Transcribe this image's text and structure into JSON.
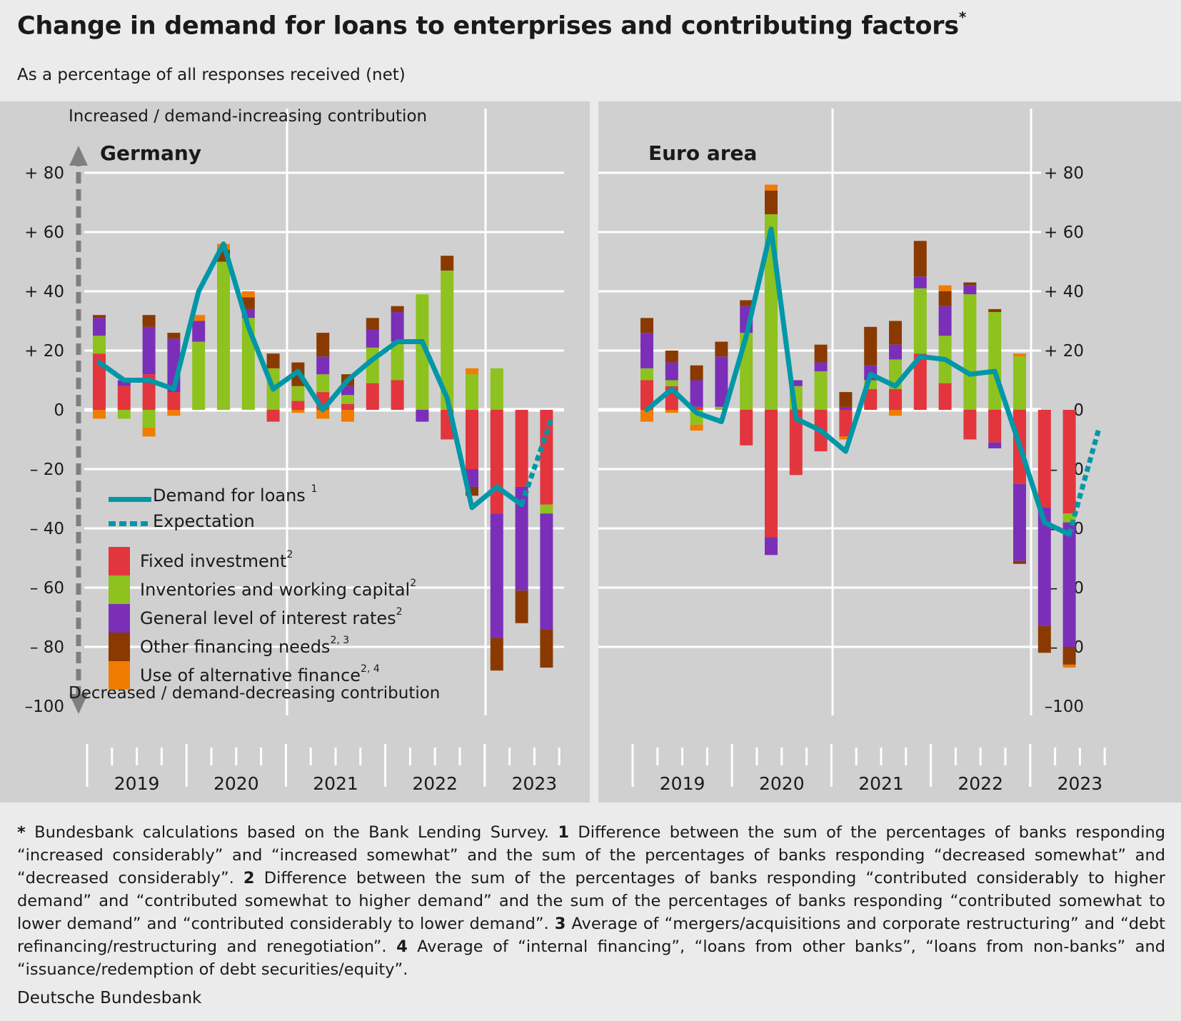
{
  "title": "Change in demand for loans to enterprises and contributing factors",
  "title_marker": "*",
  "subtitle": "As a percentage of all responses received (net)",
  "axis_top_label": "Increased / demand-increasing contribution",
  "axis_bottom_label": "Decreased / demand-decreasing contribution",
  "y_ticks": [
    {
      "value": 80,
      "label": "+  80"
    },
    {
      "value": 60,
      "label": "+  60"
    },
    {
      "value": 40,
      "label": "+  40"
    },
    {
      "value": 20,
      "label": "+  20"
    },
    {
      "value": 0,
      "label": "0"
    },
    {
      "value": -20,
      "label": "–  20"
    },
    {
      "value": -40,
      "label": "–  40"
    },
    {
      "value": -60,
      "label": "–  60"
    },
    {
      "value": -80,
      "label": "–  80"
    },
    {
      "value": -100,
      "label": "–100"
    }
  ],
  "legend": {
    "demand": {
      "label": "Demand for loans",
      "note": "1"
    },
    "expectation": {
      "label": "Expectation"
    },
    "factors": [
      {
        "key": "fixed",
        "label": "Fixed investment",
        "note": "2",
        "color": "#e3353d"
      },
      {
        "key": "inventories",
        "label": "Inventories and working capital",
        "note": "2",
        "color": "#8dc21f"
      },
      {
        "key": "interest",
        "label": "General level of interest rates",
        "note": "2",
        "color": "#7b2fb8"
      },
      {
        "key": "other",
        "label": "Other financing needs",
        "note": "2, 3",
        "color": "#8a3a00"
      },
      {
        "key": "alternative",
        "label": "Use of alternative finance",
        "note": "2, 4",
        "color": "#f07c00"
      }
    ]
  },
  "colors": {
    "line": "#0097a7",
    "panel_bg": "#d0d0d0",
    "page_bg": "#ebebeb",
    "grid": "#ffffff",
    "arrow": "#7f7f7f"
  },
  "footnote": {
    "m0": "*",
    "t0": " Bundesbank calculations based on the Bank Lending Survey. ",
    "m1": "1",
    "t1": " Difference between the sum of the percentages of banks responding “increased considerably” and “increased somewhat” and the sum of the percentages of banks responding “decreased somewhat” and “decreased considerably”. ",
    "m2": "2",
    "t2": " Difference between the sum of the percentages of banks responding “contributed considerably to higher demand” and “contributed somewhat to higher demand” and the sum of the percentages of banks responding “contributed somewhat to lower demand” and “contributed considerably to lower demand”. ",
    "m3": "3",
    "t3": " Average of “mergers/acquisitions and corporate restructuring” and “debt refinancing/restructuring and renegotiation”. ",
    "m4": "4",
    "t4": " Average of “internal financing”, “loans from other banks”, “loans from non-banks” and “issuance/redemption of debt securities/equity”."
  },
  "source": "Deutsche Bundesbank",
  "chart_data": [
    {
      "type": "bar",
      "panel": "Germany",
      "stacked": true,
      "ylim": [
        -100,
        90
      ],
      "year_labels": [
        "2019",
        "2020",
        "2021",
        "2022",
        "2023"
      ],
      "quarters": [
        "2019 Q1",
        "2019 Q2",
        "2019 Q3",
        "2019 Q4",
        "2020 Q1",
        "2020 Q2",
        "2020 Q3",
        "2020 Q4",
        "2021 Q1",
        "2021 Q2",
        "2021 Q3",
        "2021 Q4",
        "2022 Q1",
        "2022 Q2",
        "2022 Q3",
        "2022 Q4",
        "2023 Q1",
        "2023 Q2",
        "2023 Q3"
      ],
      "series": [
        {
          "name": "Fixed investment",
          "key": "fixed",
          "values": [
            19,
            8,
            12,
            6,
            0,
            0,
            0,
            -4,
            3,
            6,
            2,
            9,
            10,
            0,
            -10,
            -20,
            -35,
            -26,
            -32
          ]
        },
        {
          "name": "Inventories and working capital",
          "key": "inventories",
          "values": [
            6,
            -3,
            -6,
            0,
            23,
            50,
            31,
            14,
            5,
            6,
            3,
            12,
            13,
            39,
            47,
            12,
            14,
            0,
            -3
          ]
        },
        {
          "name": "General level of interest rates",
          "key": "interest",
          "values": [
            6,
            2,
            16,
            18,
            7,
            0,
            3,
            0,
            0,
            6,
            3,
            6,
            10,
            -4,
            0,
            -6,
            -42,
            -35,
            -39
          ]
        },
        {
          "name": "Other financing needs",
          "key": "other",
          "values": [
            1,
            0,
            4,
            2,
            0,
            4,
            4,
            5,
            8,
            8,
            4,
            4,
            2,
            0,
            5,
            -3,
            -11,
            -11,
            -13
          ]
        },
        {
          "name": "Use of alternative finance",
          "key": "alternative",
          "values": [
            -3,
            0,
            -3,
            -2,
            2,
            2,
            2,
            0,
            -1,
            -3,
            -4,
            0,
            0,
            0,
            0,
            2,
            0,
            0,
            0
          ]
        }
      ],
      "demand_for_loans": [
        16,
        10,
        10,
        7,
        40,
        56,
        28,
        7,
        13,
        0,
        10,
        17,
        23,
        23,
        4,
        -33,
        -26,
        -32
      ],
      "expectation": [
        -32,
        -3
      ]
    },
    {
      "type": "bar",
      "panel": "Euro area",
      "stacked": true,
      "ylim": [
        -100,
        90
      ],
      "year_labels": [
        "2019",
        "2020",
        "2021",
        "2022",
        "2023"
      ],
      "quarters": [
        "2019 Q1",
        "2019 Q2",
        "2019 Q3",
        "2019 Q4",
        "2020 Q1",
        "2020 Q2",
        "2020 Q3",
        "2020 Q4",
        "2021 Q1",
        "2021 Q2",
        "2021 Q3",
        "2021 Q4",
        "2022 Q1",
        "2022 Q2",
        "2022 Q3",
        "2022 Q4",
        "2023 Q1",
        "2023 Q2",
        "2023 Q3"
      ],
      "series": [
        {
          "name": "Fixed investment",
          "key": "fixed",
          "values": [
            10,
            8,
            1,
            0,
            -12,
            -43,
            -22,
            -14,
            -9,
            7,
            7,
            19,
            9,
            -10,
            -11,
            -25,
            -33,
            -35,
            0
          ]
        },
        {
          "name": "Inventories and working capital",
          "key": "inventories",
          "values": [
            4,
            2,
            -5,
            1,
            26,
            66,
            8,
            13,
            0,
            3,
            10,
            22,
            16,
            39,
            33,
            18,
            0,
            -3,
            0
          ]
        },
        {
          "name": "General level of interest rates",
          "key": "interest",
          "values": [
            12,
            6,
            9,
            17,
            9,
            -6,
            2,
            3,
            1,
            5,
            5,
            4,
            10,
            3,
            -2,
            -26,
            -40,
            -42,
            0
          ]
        },
        {
          "name": "Other financing needs",
          "key": "other",
          "values": [
            5,
            4,
            5,
            5,
            2,
            8,
            0,
            6,
            5,
            13,
            8,
            12,
            5,
            1,
            1,
            -1,
            -9,
            -6,
            0
          ]
        },
        {
          "name": "Use of alternative finance",
          "key": "alternative",
          "values": [
            -4,
            -1,
            -2,
            0,
            0,
            2,
            0,
            0,
            -1,
            0,
            -2,
            0,
            2,
            0,
            0,
            1,
            0,
            -1,
            0
          ]
        }
      ],
      "demand_for_loans": [
        0,
        7,
        -1,
        -4,
        25,
        61,
        -3,
        -7,
        -14,
        12,
        8,
        18,
        17,
        12,
        13,
        -12,
        -38,
        -42
      ],
      "expectation": [
        -42,
        -6
      ]
    }
  ]
}
